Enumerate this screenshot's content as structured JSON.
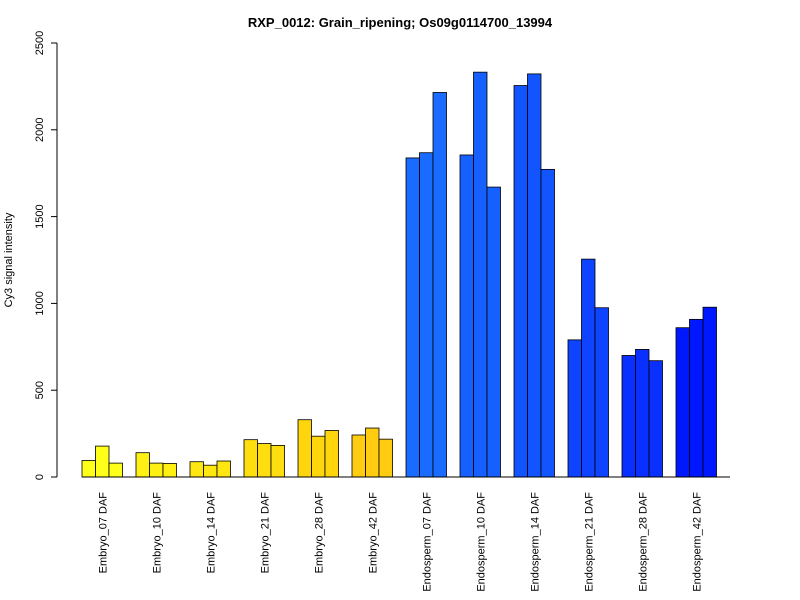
{
  "chart_data": {
    "type": "bar",
    "title": "RXP_0012: Grain_ripening; Os09g0114700_13994",
    "ylabel": "Cy3 signal intensity",
    "xlabel": "",
    "ylim": [
      0,
      2500
    ],
    "yticks": [
      0,
      500,
      1000,
      1500,
      2000,
      2500
    ],
    "grid": false,
    "legend": "none",
    "replicates_per_group": 3,
    "groups": [
      {
        "label": "Embryo_07 DAF",
        "color": "#FFFF19",
        "values": [
          95,
          178,
          80
        ]
      },
      {
        "label": "Embryo_10 DAF",
        "color": "#FFF014",
        "values": [
          140,
          80,
          78
        ]
      },
      {
        "label": "Embryo_14 DAF",
        "color": "#FFE711",
        "values": [
          88,
          68,
          92
        ]
      },
      {
        "label": "Embryo_21 DAF",
        "color": "#FFDE0F",
        "values": [
          215,
          193,
          182
        ]
      },
      {
        "label": "Embryo_28 DAF",
        "color": "#FFD60D",
        "values": [
          330,
          235,
          268
        ]
      },
      {
        "label": "Embryo_42 DAF",
        "color": "#FFCC12",
        "values": [
          242,
          282,
          218
        ]
      },
      {
        "label": "Endosperm_07 DAF",
        "color": "#1A6BFF",
        "values": [
          1838,
          1868,
          2215
        ]
      },
      {
        "label": "Endosperm_10 DAF",
        "color": "#1660FF",
        "values": [
          1855,
          2332,
          1670
        ]
      },
      {
        "label": "Endosperm_14 DAF",
        "color": "#1255FF",
        "values": [
          2255,
          2322,
          1772
        ]
      },
      {
        "label": "Endosperm_21 DAF",
        "color": "#0E43FF",
        "values": [
          790,
          1255,
          975
        ]
      },
      {
        "label": "Endosperm_28 DAF",
        "color": "#0A30FF",
        "values": [
          700,
          735,
          670
        ]
      },
      {
        "label": "Endosperm_42 DAF",
        "color": "#0018FF",
        "values": [
          860,
          908,
          978
        ]
      }
    ]
  }
}
